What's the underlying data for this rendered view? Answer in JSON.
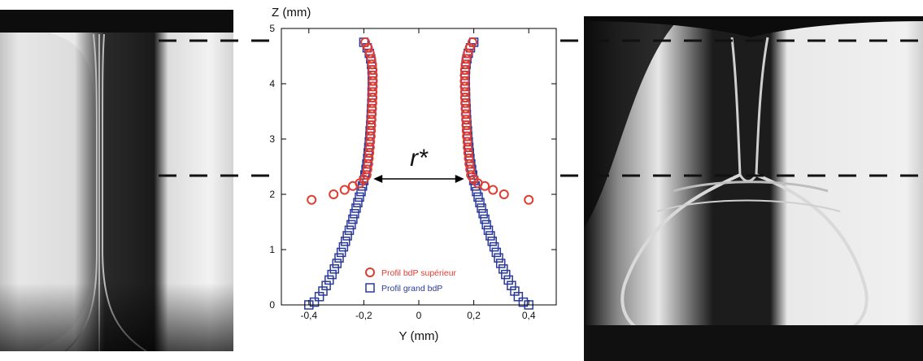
{
  "chart_data": {
    "type": "scatter",
    "title": "",
    "xlabel": "Y (mm)",
    "ylabel": "Z (mm)",
    "xlim": [
      -0.5,
      0.5
    ],
    "ylim": [
      0,
      5
    ],
    "x_ticks": [
      -0.4,
      -0.2,
      0,
      0.2,
      0.4
    ],
    "x_tick_labels": [
      "-0,4",
      "-0,2",
      "0",
      "0,2",
      "0,4"
    ],
    "y_ticks": [
      0,
      1,
      2,
      3,
      4,
      5
    ],
    "y_tick_labels": [
      "0",
      "1",
      "2",
      "3",
      "4",
      "5"
    ],
    "grid": false,
    "legend_position": "bottom-left",
    "annotation": {
      "text": "r*",
      "from": [
        -0.165,
        2.28
      ],
      "to": [
        0.165,
        2.28
      ]
    },
    "series": [
      {
        "name": "Profil bdP supérieur",
        "marker": "circle",
        "color": "#e03c31",
        "points": [
          [
            -0.195,
            4.75
          ],
          [
            -0.185,
            4.65
          ],
          [
            -0.178,
            4.55
          ],
          [
            -0.173,
            4.45
          ],
          [
            -0.17,
            4.35
          ],
          [
            -0.168,
            4.25
          ],
          [
            -0.167,
            4.15
          ],
          [
            -0.167,
            4.05
          ],
          [
            -0.167,
            3.95
          ],
          [
            -0.168,
            3.85
          ],
          [
            -0.168,
            3.75
          ],
          [
            -0.169,
            3.65
          ],
          [
            -0.17,
            3.55
          ],
          [
            -0.171,
            3.45
          ],
          [
            -0.172,
            3.35
          ],
          [
            -0.173,
            3.25
          ],
          [
            -0.174,
            3.15
          ],
          [
            -0.175,
            3.05
          ],
          [
            -0.177,
            2.95
          ],
          [
            -0.178,
            2.85
          ],
          [
            -0.18,
            2.75
          ],
          [
            -0.182,
            2.65
          ],
          [
            -0.184,
            2.55
          ],
          [
            -0.187,
            2.45
          ],
          [
            -0.19,
            2.35
          ],
          [
            -0.2,
            2.27
          ],
          [
            -0.215,
            2.2
          ],
          [
            -0.24,
            2.15
          ],
          [
            -0.27,
            2.08
          ],
          [
            -0.31,
            2.0
          ],
          [
            -0.39,
            1.9
          ],
          [
            0.195,
            4.75
          ],
          [
            0.185,
            4.65
          ],
          [
            0.178,
            4.55
          ],
          [
            0.173,
            4.45
          ],
          [
            0.17,
            4.35
          ],
          [
            0.168,
            4.25
          ],
          [
            0.167,
            4.15
          ],
          [
            0.167,
            4.05
          ],
          [
            0.167,
            3.95
          ],
          [
            0.168,
            3.85
          ],
          [
            0.168,
            3.75
          ],
          [
            0.169,
            3.65
          ],
          [
            0.17,
            3.55
          ],
          [
            0.171,
            3.45
          ],
          [
            0.172,
            3.35
          ],
          [
            0.173,
            3.25
          ],
          [
            0.174,
            3.15
          ],
          [
            0.175,
            3.05
          ],
          [
            0.177,
            2.95
          ],
          [
            0.178,
            2.85
          ],
          [
            0.18,
            2.75
          ],
          [
            0.182,
            2.65
          ],
          [
            0.184,
            2.55
          ],
          [
            0.187,
            2.45
          ],
          [
            0.19,
            2.35
          ],
          [
            0.2,
            2.27
          ],
          [
            0.215,
            2.2
          ],
          [
            0.24,
            2.15
          ],
          [
            0.27,
            2.08
          ],
          [
            0.31,
            2.0
          ],
          [
            0.4,
            1.9
          ]
        ]
      },
      {
        "name": "Profil grand bdP",
        "marker": "square",
        "color": "#2b3a9a",
        "points": [
          [
            -0.2,
            4.75
          ],
          [
            -0.188,
            4.65
          ],
          [
            -0.18,
            4.55
          ],
          [
            -0.175,
            4.45
          ],
          [
            -0.172,
            4.35
          ],
          [
            -0.17,
            4.25
          ],
          [
            -0.169,
            4.15
          ],
          [
            -0.169,
            4.05
          ],
          [
            -0.169,
            3.95
          ],
          [
            -0.17,
            3.85
          ],
          [
            -0.17,
            3.75
          ],
          [
            -0.171,
            3.65
          ],
          [
            -0.172,
            3.55
          ],
          [
            -0.173,
            3.45
          ],
          [
            -0.174,
            3.35
          ],
          [
            -0.175,
            3.25
          ],
          [
            -0.177,
            3.15
          ],
          [
            -0.178,
            3.05
          ],
          [
            -0.18,
            2.95
          ],
          [
            -0.182,
            2.85
          ],
          [
            -0.184,
            2.75
          ],
          [
            -0.186,
            2.65
          ],
          [
            -0.189,
            2.55
          ],
          [
            -0.192,
            2.45
          ],
          [
            -0.196,
            2.35
          ],
          [
            -0.2,
            2.25
          ],
          [
            -0.205,
            2.15
          ],
          [
            -0.21,
            2.05
          ],
          [
            -0.216,
            1.95
          ],
          [
            -0.222,
            1.85
          ],
          [
            -0.228,
            1.75
          ],
          [
            -0.234,
            1.65
          ],
          [
            -0.24,
            1.55
          ],
          [
            -0.246,
            1.45
          ],
          [
            -0.253,
            1.35
          ],
          [
            -0.26,
            1.25
          ],
          [
            -0.267,
            1.15
          ],
          [
            -0.274,
            1.05
          ],
          [
            -0.282,
            0.95
          ],
          [
            -0.29,
            0.85
          ],
          [
            -0.298,
            0.75
          ],
          [
            -0.307,
            0.65
          ],
          [
            -0.316,
            0.55
          ],
          [
            -0.326,
            0.45
          ],
          [
            -0.337,
            0.35
          ],
          [
            -0.349,
            0.25
          ],
          [
            -0.362,
            0.15
          ],
          [
            -0.38,
            0.05
          ],
          [
            -0.4,
            0.0
          ],
          [
            0.2,
            4.75
          ],
          [
            0.188,
            4.65
          ],
          [
            0.18,
            4.55
          ],
          [
            0.175,
            4.45
          ],
          [
            0.172,
            4.35
          ],
          [
            0.17,
            4.25
          ],
          [
            0.169,
            4.15
          ],
          [
            0.169,
            4.05
          ],
          [
            0.169,
            3.95
          ],
          [
            0.17,
            3.85
          ],
          [
            0.17,
            3.75
          ],
          [
            0.171,
            3.65
          ],
          [
            0.172,
            3.55
          ],
          [
            0.173,
            3.45
          ],
          [
            0.174,
            3.35
          ],
          [
            0.175,
            3.25
          ],
          [
            0.177,
            3.15
          ],
          [
            0.178,
            3.05
          ],
          [
            0.18,
            2.95
          ],
          [
            0.182,
            2.85
          ],
          [
            0.184,
            2.75
          ],
          [
            0.186,
            2.65
          ],
          [
            0.189,
            2.55
          ],
          [
            0.192,
            2.45
          ],
          [
            0.196,
            2.35
          ],
          [
            0.2,
            2.25
          ],
          [
            0.205,
            2.15
          ],
          [
            0.21,
            2.05
          ],
          [
            0.216,
            1.95
          ],
          [
            0.222,
            1.85
          ],
          [
            0.228,
            1.75
          ],
          [
            0.234,
            1.65
          ],
          [
            0.24,
            1.55
          ],
          [
            0.246,
            1.45
          ],
          [
            0.253,
            1.35
          ],
          [
            0.26,
            1.25
          ],
          [
            0.267,
            1.15
          ],
          [
            0.274,
            1.05
          ],
          [
            0.282,
            0.95
          ],
          [
            0.29,
            0.85
          ],
          [
            0.298,
            0.75
          ],
          [
            0.307,
            0.65
          ],
          [
            0.316,
            0.55
          ],
          [
            0.326,
            0.45
          ],
          [
            0.337,
            0.35
          ],
          [
            0.349,
            0.25
          ],
          [
            0.362,
            0.15
          ],
          [
            0.38,
            0.05
          ],
          [
            0.4,
            0.0
          ]
        ]
      }
    ]
  },
  "photos": [
    {
      "name": "photo-film-single-neck"
    },
    {
      "name": "photo-film-bubble-junction"
    }
  ]
}
